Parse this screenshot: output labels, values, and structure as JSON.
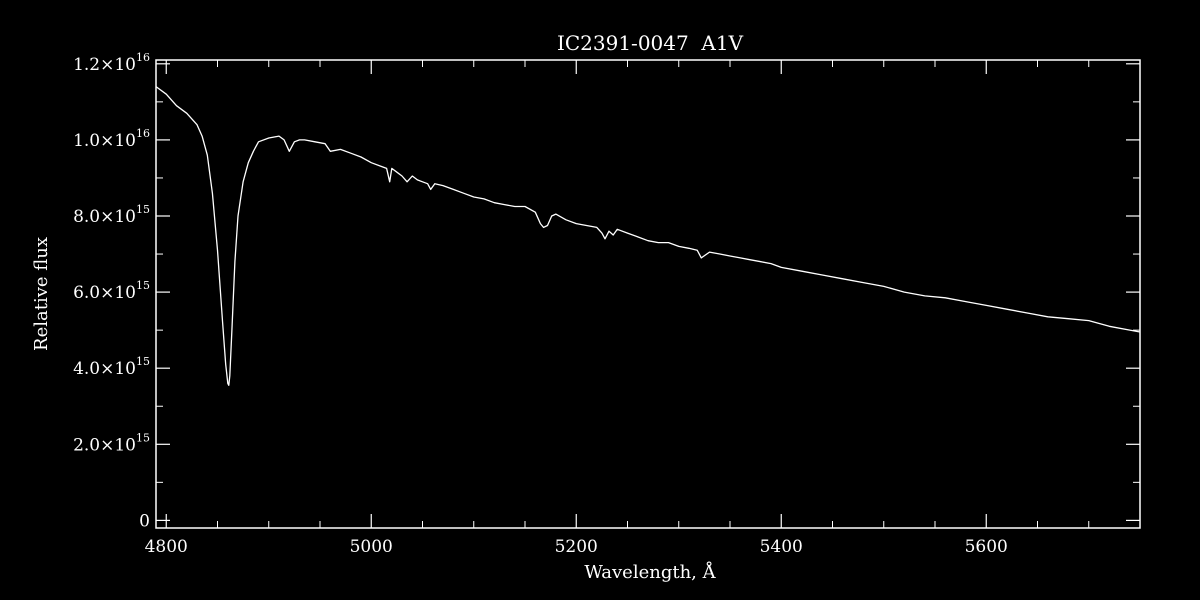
{
  "chart_data": {
    "type": "line",
    "title": "IC2391-0047  A1V",
    "xlabel": "Wavelength, Å",
    "ylabel": "Relative flux",
    "xlim": [
      4790,
      5750
    ],
    "ylim": [
      -200000000000000.0,
      1.21e+16
    ],
    "x_ticks": [
      4800,
      5000,
      5200,
      5400,
      5600
    ],
    "x_tick_labels": [
      "4800",
      "5000",
      "5200",
      "5400",
      "5600"
    ],
    "y_ticks": [
      0,
      2000000000000000.0,
      4000000000000000.0,
      6000000000000000.0,
      8000000000000000.0,
      1e+16,
      1.2e+16
    ],
    "y_tick_labels": [
      {
        "mant": "0",
        "exp": ""
      },
      {
        "mant": "2.0×10",
        "exp": "15"
      },
      {
        "mant": "4.0×10",
        "exp": "15"
      },
      {
        "mant": "6.0×10",
        "exp": "15"
      },
      {
        "mant": "8.0×10",
        "exp": "15"
      },
      {
        "mant": "1.0×10",
        "exp": "16"
      },
      {
        "mant": "1.2×10",
        "exp": "16"
      }
    ],
    "grid": false,
    "line_color": "#ffffff",
    "background": "#000000",
    "series": [
      {
        "x": [
          4790,
          4800,
          4810,
          4820,
          4830,
          4835,
          4840,
          4845,
          4850,
          4855,
          4858,
          4860,
          4861,
          4862,
          4864,
          4867,
          4870,
          4875,
          4880,
          4885,
          4890,
          4900,
          4910,
          4915,
          4920,
          4925,
          4930,
          4935,
          4945,
          4955,
          4960,
          4970,
          4980,
          4990,
          5000,
          5010,
          5015,
          5018,
          5020,
          5025,
          5030,
          5035,
          5040,
          5045,
          5050,
          5055,
          5058,
          5062,
          5070,
          5080,
          5090,
          5100,
          5110,
          5120,
          5130,
          5140,
          5150,
          5160,
          5165,
          5168,
          5172,
          5176,
          5180,
          5190,
          5200,
          5210,
          5220,
          5225,
          5228,
          5232,
          5236,
          5240,
          5250,
          5260,
          5270,
          5280,
          5290,
          5300,
          5310,
          5318,
          5322,
          5330,
          5340,
          5350,
          5360,
          5370,
          5380,
          5390,
          5400,
          5420,
          5440,
          5460,
          5480,
          5500,
          5520,
          5540,
          5560,
          5580,
          5600,
          5620,
          5640,
          5660,
          5680,
          5700,
          5720,
          5740,
          5750
        ],
        "y": [
          1.14e+16,
          1.12e+16,
          1.09e+16,
          1.07e+16,
          1.04e+16,
          1.01e+16,
          9600000000000000.0,
          8600000000000000.0,
          7100000000000000.0,
          5200000000000000.0,
          4100000000000000.0,
          3600000000000000.0,
          3550000000000000.0,
          3800000000000000.0,
          5000000000000000.0,
          6800000000000000.0,
          8000000000000000.0,
          8900000000000000.0,
          9400000000000000.0,
          9700000000000000.0,
          9950000000000000.0,
          1.005e+16,
          1.01e+16,
          1e+16,
          9700000000000000.0,
          9950000000000000.0,
          1e+16,
          1e+16,
          9950000000000000.0,
          9900000000000000.0,
          9700000000000000.0,
          9750000000000000.0,
          9650000000000000.0,
          9550000000000000.0,
          9400000000000000.0,
          9300000000000000.0,
          9250000000000000.0,
          8900000000000000.0,
          9250000000000000.0,
          9150000000000000.0,
          9050000000000000.0,
          8900000000000000.0,
          9050000000000000.0,
          8950000000000000.0,
          8900000000000000.0,
          8850000000000000.0,
          8700000000000000.0,
          8850000000000000.0,
          8800000000000000.0,
          8700000000000000.0,
          8600000000000000.0,
          8500000000000000.0,
          8450000000000000.0,
          8350000000000000.0,
          8300000000000000.0,
          8250000000000000.0,
          8250000000000000.0,
          8100000000000000.0,
          7800000000000000.0,
          7700000000000000.0,
          7750000000000000.0,
          8000000000000000.0,
          8050000000000000.0,
          7900000000000000.0,
          7800000000000000.0,
          7750000000000000.0,
          7700000000000000.0,
          7550000000000000.0,
          7400000000000000.0,
          7600000000000000.0,
          7500000000000000.0,
          7650000000000000.0,
          7550000000000000.0,
          7450000000000000.0,
          7350000000000000.0,
          7300000000000000.0,
          7300000000000000.0,
          7200000000000000.0,
          7150000000000000.0,
          7100000000000000.0,
          6900000000000000.0,
          7050000000000000.0,
          7000000000000000.0,
          6950000000000000.0,
          6900000000000000.0,
          6850000000000000.0,
          6800000000000000.0,
          6750000000000000.0,
          6650000000000000.0,
          6550000000000000.0,
          6450000000000000.0,
          6350000000000000.0,
          6250000000000000.0,
          6150000000000000.0,
          6000000000000000.0,
          5900000000000000.0,
          5850000000000000.0,
          5750000000000000.0,
          5650000000000000.0,
          5550000000000000.0,
          5450000000000000.0,
          5350000000000000.0,
          5300000000000000.0,
          5250000000000000.0,
          5100000000000000.0,
          5000000000000000.0,
          4950000000000000.0
        ]
      }
    ]
  }
}
